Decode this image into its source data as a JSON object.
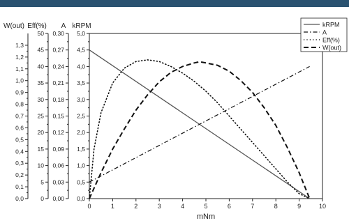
{
  "header": {
    "bar_color": "#2a5270"
  },
  "chart_data": {
    "type": "line",
    "xlabel": "mNm",
    "xlim": [
      0,
      10
    ],
    "x_ticks": [
      0,
      1,
      2,
      3,
      4,
      5,
      6,
      7,
      8,
      9,
      10
    ],
    "axes": [
      {
        "label": "W(out)",
        "ylim": [
          0,
          1.4
        ],
        "ticks": [
          "0,0",
          "0,1",
          "0,2",
          "0,3",
          "0,4",
          "0,5",
          "0,6",
          "0,7",
          "0,8",
          "0,9",
          "1,0",
          "1,1",
          "1,2",
          "1,3"
        ]
      },
      {
        "label": "Eff(%)",
        "ylim": [
          0,
          50
        ],
        "ticks": [
          "0",
          "5",
          "10",
          "15",
          "20",
          "25",
          "30",
          "35",
          "40",
          "45",
          "50"
        ]
      },
      {
        "label": "A",
        "ylim": [
          0,
          0.3
        ],
        "ticks": [
          "0,00",
          "0,03",
          "0,06",
          "0,09",
          "0,12",
          "0,15",
          "0,18",
          "0,21",
          "0,24",
          "0,27",
          "0,30"
        ]
      },
      {
        "label": "kRPM",
        "ylim": [
          0,
          5.0
        ],
        "ticks": [
          "0,0",
          "0,5",
          "1,0",
          "1,5",
          "2,0",
          "2,5",
          "3,0",
          "3,5",
          "4,0",
          "4,5",
          "5,0"
        ]
      }
    ],
    "legend": {
      "position": "top-right"
    },
    "series": [
      {
        "name": "kRPM",
        "axis": "kRPM",
        "style": "solid",
        "color": "#555555",
        "x": [
          0,
          9.45
        ],
        "y": [
          4.5,
          0.0
        ]
      },
      {
        "name": "A",
        "axis": "A",
        "style": "dashdot",
        "color": "#111111",
        "x": [
          0,
          9.45
        ],
        "y": [
          0.03,
          0.24
        ]
      },
      {
        "name": "Eff(%)",
        "axis": "Eff(%)",
        "style": "dotted",
        "color": "#111111",
        "x": [
          0,
          0.2,
          0.5,
          1.0,
          1.5,
          2.0,
          2.5,
          3.0,
          3.5,
          4.0,
          4.5,
          5.0,
          5.5,
          6.0,
          6.5,
          7.0,
          7.5,
          8.0,
          8.5,
          9.0,
          9.45
        ],
        "y": [
          0,
          15,
          26,
          35,
          39.5,
          41.5,
          42,
          41.5,
          40,
          38,
          35.5,
          32.5,
          29,
          25,
          21,
          17,
          13,
          9,
          5,
          1.5,
          0
        ]
      },
      {
        "name": "W(out)",
        "axis": "W(out)",
        "style": "dashed",
        "color": "#111111",
        "x": [
          0,
          0.5,
          1.0,
          1.5,
          2.0,
          2.5,
          3.0,
          3.5,
          4.0,
          4.5,
          4.725,
          5.0,
          5.5,
          6.0,
          6.5,
          7.0,
          7.5,
          8.0,
          8.5,
          9.0,
          9.45
        ],
        "y": [
          0,
          0.22,
          0.42,
          0.59,
          0.75,
          0.88,
          0.99,
          1.07,
          1.12,
          1.15,
          1.16,
          1.15,
          1.13,
          1.08,
          1.0,
          0.9,
          0.77,
          0.62,
          0.43,
          0.22,
          0
        ]
      }
    ]
  }
}
